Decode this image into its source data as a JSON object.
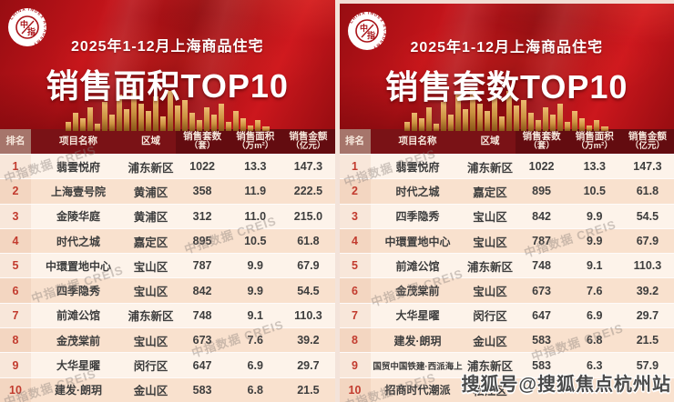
{
  "chart_data": [
    {
      "type": "table",
      "subtitle": "2025年1-12月上海商品住宅",
      "title": "销售面积TOP10",
      "columns": [
        "排名",
        "项目名称",
        "区域",
        "销售套数（套）",
        "销售面积（万m²）",
        "销售金额（亿元）"
      ],
      "rows": [
        {
          "rank": "1",
          "name": "翡雲悦府",
          "region": "浦东新区",
          "units": "1022",
          "area": "13.3",
          "amount": "147.3"
        },
        {
          "rank": "2",
          "name": "上海壹号院",
          "region": "黄浦区",
          "units": "358",
          "area": "11.9",
          "amount": "222.5"
        },
        {
          "rank": "3",
          "name": "金陵华庭",
          "region": "黄浦区",
          "units": "312",
          "area": "11.0",
          "amount": "215.0"
        },
        {
          "rank": "4",
          "name": "时代之城",
          "region": "嘉定区",
          "units": "895",
          "area": "10.5",
          "amount": "61.8"
        },
        {
          "rank": "5",
          "name": "中環置地中心",
          "region": "宝山区",
          "units": "787",
          "area": "9.9",
          "amount": "67.9"
        },
        {
          "rank": "6",
          "name": "四季隐秀",
          "region": "宝山区",
          "units": "842",
          "area": "9.9",
          "amount": "54.5"
        },
        {
          "rank": "7",
          "name": "前滩公馆",
          "region": "浦东新区",
          "units": "748",
          "area": "9.1",
          "amount": "110.3"
        },
        {
          "rank": "8",
          "name": "金茂棠前",
          "region": "宝山区",
          "units": "673",
          "area": "7.6",
          "amount": "39.2"
        },
        {
          "rank": "9",
          "name": "大华星曜",
          "region": "闵行区",
          "units": "647",
          "area": "6.9",
          "amount": "29.7"
        },
        {
          "rank": "10",
          "name": "建发·朗玥",
          "region": "金山区",
          "units": "583",
          "area": "6.8",
          "amount": "21.5"
        }
      ]
    },
    {
      "type": "table",
      "subtitle": "2025年1-12月上海商品住宅",
      "title": "销售套数TOP10",
      "columns": [
        "排名",
        "项目名称",
        "区域",
        "销售套数（套）",
        "销售面积（万m²）",
        "销售金额（亿元）"
      ],
      "rows": [
        {
          "rank": "1",
          "name": "翡雲悦府",
          "region": "浦东新区",
          "units": "1022",
          "area": "13.3",
          "amount": "147.3"
        },
        {
          "rank": "2",
          "name": "时代之城",
          "region": "嘉定区",
          "units": "895",
          "area": "10.5",
          "amount": "61.8"
        },
        {
          "rank": "3",
          "name": "四季隐秀",
          "region": "宝山区",
          "units": "842",
          "area": "9.9",
          "amount": "54.5"
        },
        {
          "rank": "4",
          "name": "中環置地中心",
          "region": "宝山区",
          "units": "787",
          "area": "9.9",
          "amount": "67.9"
        },
        {
          "rank": "5",
          "name": "前滩公馆",
          "region": "浦东新区",
          "units": "748",
          "area": "9.1",
          "amount": "110.3"
        },
        {
          "rank": "6",
          "name": "金茂棠前",
          "region": "宝山区",
          "units": "673",
          "area": "7.6",
          "amount": "39.2"
        },
        {
          "rank": "7",
          "name": "大华星曜",
          "region": "闵行区",
          "units": "647",
          "area": "6.9",
          "amount": "29.7"
        },
        {
          "rank": "8",
          "name": "建发·朗玥",
          "region": "金山区",
          "units": "583",
          "area": "6.8",
          "amount": "21.5"
        },
        {
          "rank": "9",
          "name": "国贸中国铁建·西派海上",
          "region": "浦东新区",
          "units": "583",
          "area": "6.3",
          "amount": "57.9"
        },
        {
          "rank": "10",
          "name": "招商时代潮派",
          "region": "松江区",
          "units": "",
          "area": "",
          "amount": ""
        }
      ]
    }
  ],
  "header_cells": [
    {
      "l1": "排名",
      "l2": ""
    },
    {
      "l1": "项目名称",
      "l2": ""
    },
    {
      "l1": "区域",
      "l2": ""
    },
    {
      "l1": "销售套数",
      "l2": "（套）"
    },
    {
      "l1": "销售面积",
      "l2": "（万m²）"
    },
    {
      "l1": "销售金额",
      "l2": "（亿元）"
    }
  ],
  "logo": {
    "ring_text": "CHINA INDEX ACADEMY",
    "center_top": "中",
    "center_bottom": "指"
  },
  "watermarks": {
    "creis": "中指数据 CREIS",
    "sohu": "搜狐号@搜狐焦点杭州站"
  }
}
